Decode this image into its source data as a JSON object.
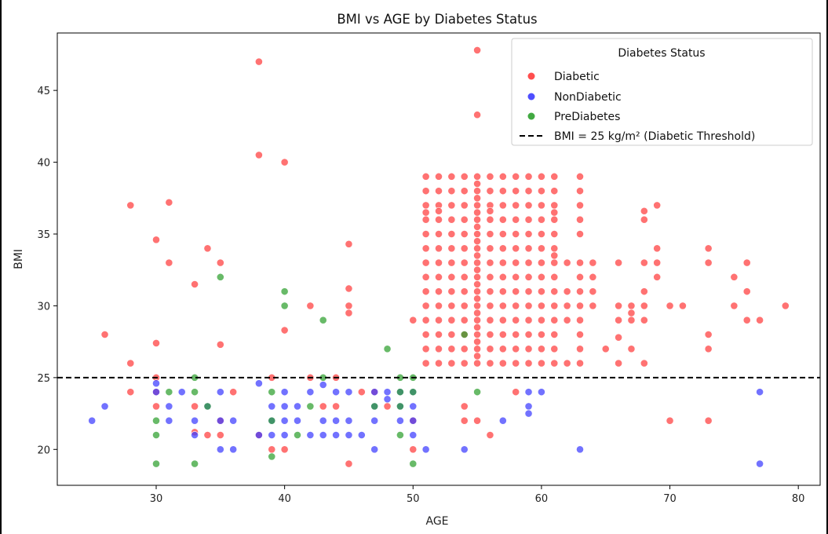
{
  "chart_data": {
    "type": "scatter",
    "title": "BMI vs AGE by Diabetes Status",
    "xlabel": "AGE",
    "ylabel": "BMI",
    "xlim": [
      22.3,
      81.7
    ],
    "ylim": [
      17.5,
      49.0
    ],
    "xticks": [
      30,
      40,
      50,
      60,
      70,
      80
    ],
    "yticks": [
      20,
      25,
      30,
      35,
      40,
      45
    ],
    "grid": false,
    "legend": {
      "title": "Diabetes Status",
      "placement": "top-right",
      "entries": [
        "Diabetic",
        "NonDiabetic",
        "PreDiabetes",
        "BMI = 25 kg/m² (Diabetic Threshold)"
      ]
    },
    "colors": {
      "Diabetic": "#ff3b3b",
      "NonDiabetic": "#3b3bff",
      "PreDiabetes": "#2ea02e",
      "threshold": "#000000"
    },
    "reference_line": {
      "y": 25,
      "style": "dashed",
      "label": "BMI = 25 kg/m² (Diabetic Threshold)"
    },
    "series": [
      {
        "name": "Diabetic",
        "points": [
          [
            26,
            28
          ],
          [
            28,
            37
          ],
          [
            28,
            26
          ],
          [
            28,
            24
          ],
          [
            30,
            34.6
          ],
          [
            30,
            27.4
          ],
          [
            30,
            25
          ],
          [
            30,
            24
          ],
          [
            30,
            23
          ],
          [
            31,
            37.2
          ],
          [
            31,
            33
          ],
          [
            33,
            31.5
          ],
          [
            33,
            23
          ],
          [
            33,
            21.2
          ],
          [
            34,
            34
          ],
          [
            34,
            21
          ],
          [
            35,
            33
          ],
          [
            35,
            27.3
          ],
          [
            35,
            21
          ],
          [
            35,
            22
          ],
          [
            36,
            24
          ],
          [
            38,
            47
          ],
          [
            38,
            40.5
          ],
          [
            38,
            21
          ],
          [
            39,
            25
          ],
          [
            39,
            20
          ],
          [
            40,
            40
          ],
          [
            40,
            28.3
          ],
          [
            40,
            20
          ],
          [
            42,
            30
          ],
          [
            42,
            25
          ],
          [
            43,
            23
          ],
          [
            44,
            25
          ],
          [
            44,
            23
          ],
          [
            45,
            34.3
          ],
          [
            45,
            31.2
          ],
          [
            45,
            30
          ],
          [
            45,
            29.5
          ],
          [
            45,
            19
          ],
          [
            46,
            24
          ],
          [
            47,
            24
          ],
          [
            48,
            23
          ],
          [
            50,
            29
          ],
          [
            50,
            22
          ],
          [
            50,
            20
          ],
          [
            54,
            23
          ],
          [
            54,
            22
          ],
          [
            55,
            47.8
          ],
          [
            55,
            43.3
          ],
          [
            55,
            22
          ],
          [
            56,
            21
          ],
          [
            58,
            24
          ],
          [
            62,
            33
          ],
          [
            62,
            31
          ],
          [
            62,
            30
          ],
          [
            62,
            29
          ],
          [
            62,
            26
          ],
          [
            63,
            39
          ],
          [
            63,
            38
          ],
          [
            63,
            37
          ],
          [
            63,
            36
          ],
          [
            63,
            35
          ],
          [
            63,
            33
          ],
          [
            63,
            32
          ],
          [
            63,
            31
          ],
          [
            63,
            30
          ],
          [
            63,
            29
          ],
          [
            63,
            28
          ],
          [
            63,
            27
          ],
          [
            63,
            26
          ],
          [
            64,
            33
          ],
          [
            64,
            32
          ],
          [
            64,
            31
          ],
          [
            64,
            30
          ],
          [
            65,
            27
          ],
          [
            66,
            33
          ],
          [
            66,
            30
          ],
          [
            66,
            29
          ],
          [
            66,
            27.8
          ],
          [
            66,
            26
          ],
          [
            67,
            30
          ],
          [
            67,
            29.5
          ],
          [
            67,
            29
          ],
          [
            67,
            27
          ],
          [
            68,
            36.6
          ],
          [
            68,
            36
          ],
          [
            68,
            33
          ],
          [
            68,
            31
          ],
          [
            68,
            30
          ],
          [
            68,
            29
          ],
          [
            68,
            26
          ],
          [
            69,
            37
          ],
          [
            69,
            34
          ],
          [
            69,
            33
          ],
          [
            69,
            32
          ],
          [
            70,
            30
          ],
          [
            70,
            22
          ],
          [
            71,
            30
          ],
          [
            73,
            34
          ],
          [
            73,
            33
          ],
          [
            73,
            28
          ],
          [
            73,
            27
          ],
          [
            73,
            22
          ],
          [
            75,
            32
          ],
          [
            75,
            30
          ],
          [
            76,
            33
          ],
          [
            76,
            31
          ],
          [
            76,
            29
          ],
          [
            77,
            29
          ],
          [
            79,
            30
          ]
        ]
      },
      {
        "name": "NonDiabetic",
        "points": [
          [
            25,
            22
          ],
          [
            26,
            23
          ],
          [
            30,
            24.6
          ],
          [
            30,
            24
          ],
          [
            31,
            23
          ],
          [
            31,
            22
          ],
          [
            32,
            24
          ],
          [
            33,
            22
          ],
          [
            33,
            21
          ],
          [
            34,
            23
          ],
          [
            35,
            24
          ],
          [
            35,
            22
          ],
          [
            35,
            20
          ],
          [
            36,
            22
          ],
          [
            36,
            20
          ],
          [
            38,
            24.6
          ],
          [
            38,
            21
          ],
          [
            39,
            23
          ],
          [
            39,
            22
          ],
          [
            39,
            21
          ],
          [
            40,
            24
          ],
          [
            40,
            23
          ],
          [
            40,
            22
          ],
          [
            40,
            21
          ],
          [
            41,
            23
          ],
          [
            41,
            22
          ],
          [
            42,
            24
          ],
          [
            42,
            21
          ],
          [
            43,
            24.5
          ],
          [
            43,
            22
          ],
          [
            43,
            21
          ],
          [
            44,
            24
          ],
          [
            44,
            22
          ],
          [
            44,
            21
          ],
          [
            45,
            24
          ],
          [
            45,
            22
          ],
          [
            45,
            21
          ],
          [
            46,
            21
          ],
          [
            47,
            24
          ],
          [
            47,
            23
          ],
          [
            47,
            22
          ],
          [
            47,
            20
          ],
          [
            48,
            24
          ],
          [
            48,
            23.5
          ],
          [
            49,
            24
          ],
          [
            49,
            23
          ],
          [
            49,
            22
          ],
          [
            50,
            24
          ],
          [
            50,
            23
          ],
          [
            50,
            22
          ],
          [
            50,
            21
          ],
          [
            51,
            20
          ],
          [
            54,
            20
          ],
          [
            57,
            22
          ],
          [
            59,
            24
          ],
          [
            59,
            23
          ],
          [
            59,
            22.5
          ],
          [
            60,
            24
          ],
          [
            63,
            20
          ],
          [
            77,
            24
          ],
          [
            77,
            19
          ]
        ]
      },
      {
        "name": "PreDiabetes",
        "points": [
          [
            30,
            22
          ],
          [
            30,
            21
          ],
          [
            30,
            19
          ],
          [
            31,
            24
          ],
          [
            33,
            25
          ],
          [
            33,
            24
          ],
          [
            33,
            19
          ],
          [
            34,
            23
          ],
          [
            35,
            32
          ],
          [
            39,
            24
          ],
          [
            39,
            22
          ],
          [
            39,
            19.5
          ],
          [
            40,
            31
          ],
          [
            40,
            30
          ],
          [
            41,
            21
          ],
          [
            42,
            23
          ],
          [
            43,
            29
          ],
          [
            43,
            25
          ],
          [
            47,
            23
          ],
          [
            48,
            27
          ],
          [
            49,
            25
          ],
          [
            49,
            24
          ],
          [
            49,
            23
          ],
          [
            49,
            21
          ],
          [
            50,
            25
          ],
          [
            50,
            24
          ],
          [
            50,
            19
          ],
          [
            54,
            28
          ],
          [
            55,
            24
          ]
        ]
      }
    ],
    "dense_grid": {
      "series": "Diabetic",
      "ages": [
        51,
        52,
        53,
        54,
        55,
        56,
        57,
        58,
        59,
        60,
        61
      ],
      "bmi_min": 26,
      "bmi_max": 39,
      "bmi_step": 1,
      "extra_points": [
        [
          51,
          36.5
        ],
        [
          52,
          36.6
        ],
        [
          55,
          38.5
        ],
        [
          55,
          37.5
        ],
        [
          55,
          36.5
        ],
        [
          55,
          35.5
        ],
        [
          55,
          34.5
        ],
        [
          55,
          33.5
        ],
        [
          55,
          32.5
        ],
        [
          55,
          31.5
        ],
        [
          55,
          30.5
        ],
        [
          55,
          29.5
        ],
        [
          55,
          28.5
        ],
        [
          55,
          27.5
        ],
        [
          55,
          26.5
        ],
        [
          56,
          36.6
        ],
        [
          61,
          36.5
        ],
        [
          61,
          33.5
        ]
      ]
    }
  }
}
